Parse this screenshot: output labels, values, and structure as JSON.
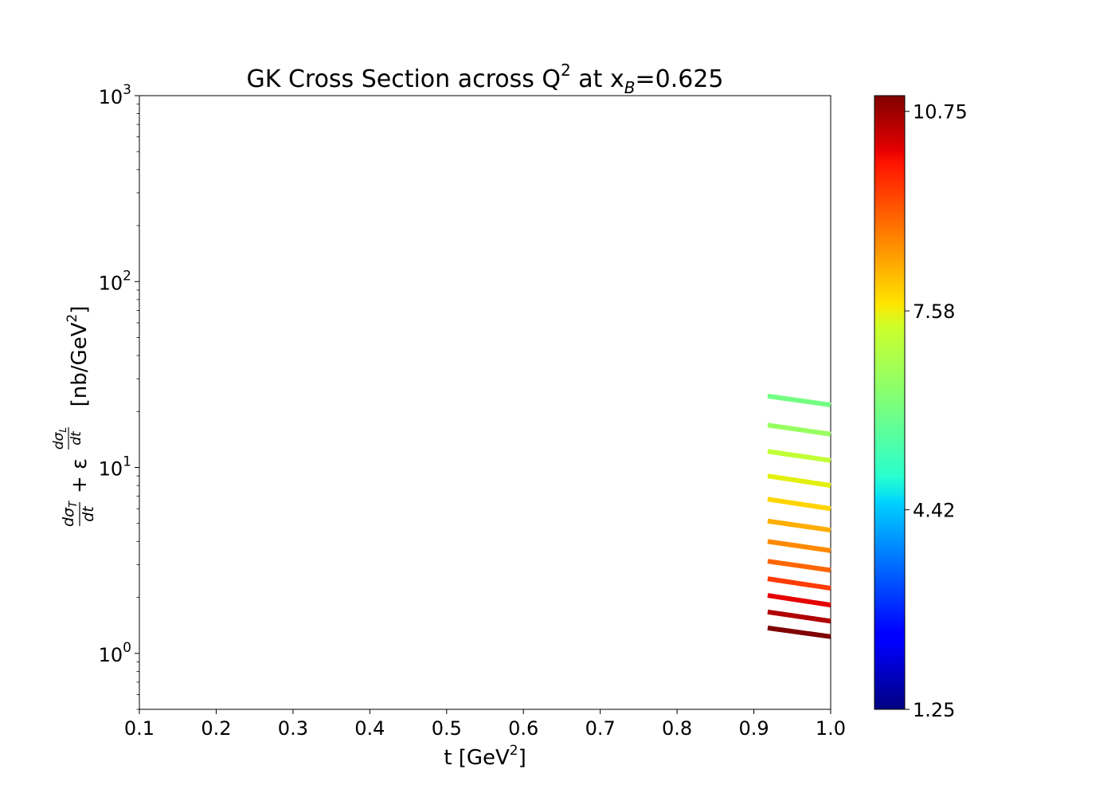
{
  "chart_data": {
    "type": "line",
    "title": "GK Cross Section across Q² at x_B=0.625",
    "title_parts": {
      "main": "GK Cross Section across Q",
      "sup": "2",
      "mid": " at x",
      "sub": "B",
      "tail": "=0.625"
    },
    "xlabel": "t [GeV²]",
    "xlabel_parts": {
      "main": "t [GeV",
      "sup": "2",
      "tail": "]"
    },
    "ylabel": "dσ_T/dt + ε dσ_L/dt [nb/GeV²]",
    "ylabel_parts": {
      "t_num": "dσ",
      "t_sub": "T",
      "den": "dt",
      "plus": "+ ε",
      "l_num": "dσ",
      "l_sub": "L",
      "unit_main": "[nb/GeV",
      "unit_sup": "2",
      "unit_tail": "]"
    },
    "xlim": [
      0.1,
      1.0
    ],
    "xticks": [
      "0.1",
      "0.2",
      "0.3",
      "0.4",
      "0.5",
      "0.6",
      "0.7",
      "0.8",
      "0.9",
      "1.0"
    ],
    "yscale": "log",
    "ylim": [
      0.5,
      1000
    ],
    "yticks": [
      {
        "value": 1,
        "base": "10",
        "exp": "0"
      },
      {
        "value": 10,
        "base": "10",
        "exp": "1"
      },
      {
        "value": 100,
        "base": "10",
        "exp": "2"
      },
      {
        "value": 1000,
        "base": "10",
        "exp": "3"
      }
    ],
    "grid": false,
    "colorbar": {
      "label": "",
      "min": 1.25,
      "max": 11.0,
      "colormap": "jet",
      "ticks": [
        "1.25",
        "4.42",
        "7.58",
        "10.75"
      ]
    },
    "series": [
      {
        "q2": 6.25,
        "color": "#73ff83",
        "x": [
          0.918,
          1.0
        ],
        "y": [
          24.2,
          21.7
        ]
      },
      {
        "q2": 6.75,
        "color": "#97ff60",
        "x": [
          0.918,
          1.0
        ],
        "y": [
          16.9,
          15.1
        ]
      },
      {
        "q2": 7.25,
        "color": "#c1ff36",
        "x": [
          0.918,
          1.0
        ],
        "y": [
          12.2,
          10.9
        ]
      },
      {
        "q2": 7.75,
        "color": "#e3f00d",
        "x": [
          0.918,
          1.0
        ],
        "y": [
          9.0,
          8.0
        ]
      },
      {
        "q2": 8.25,
        "color": "#ffd400",
        "x": [
          0.918,
          1.0
        ],
        "y": [
          6.75,
          6.0
        ]
      },
      {
        "q2": 8.75,
        "color": "#ffae00",
        "x": [
          0.918,
          1.0
        ],
        "y": [
          5.15,
          4.6
        ]
      },
      {
        "q2": 9.25,
        "color": "#ff8a00",
        "x": [
          0.918,
          1.0
        ],
        "y": [
          4.0,
          3.57
        ]
      },
      {
        "q2": 9.75,
        "color": "#ff6500",
        "x": [
          0.918,
          1.0
        ],
        "y": [
          3.13,
          2.8
        ]
      },
      {
        "q2": 10.25,
        "color": "#fe3b00",
        "x": [
          0.918,
          1.0
        ],
        "y": [
          2.52,
          2.24
        ]
      },
      {
        "q2": 10.75,
        "color": "#e50000",
        "x": [
          0.918,
          1.0
        ],
        "y": [
          2.05,
          1.82
        ]
      },
      {
        "q2": 11.25,
        "color": "#b00000",
        "x": [
          0.918,
          1.0
        ],
        "y": [
          1.67,
          1.49
        ]
      },
      {
        "q2": 11.75,
        "color": "#800000",
        "x": [
          0.918,
          1.0
        ],
        "y": [
          1.37,
          1.23
        ]
      }
    ]
  }
}
